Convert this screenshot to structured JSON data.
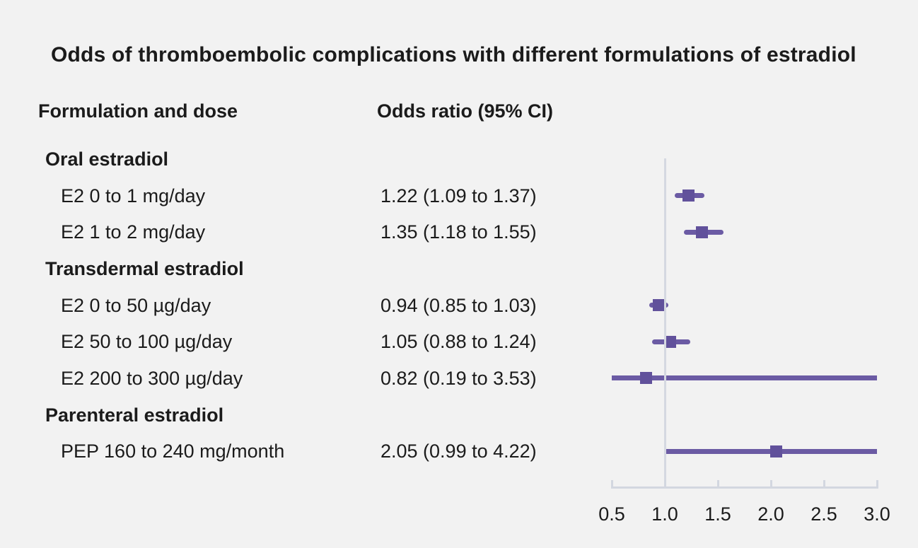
{
  "title": "Odds of thromboembolic complications with different formulations of estradiol",
  "header": {
    "formulation_col": "Formulation and dose",
    "odds_ratio_col": "Odds ratio (95% CI)"
  },
  "colors": {
    "background": "#f2f2f2",
    "text": "#1b1b1b",
    "marker": "#61519b",
    "ci_line": "#6b5ba4",
    "axis_line": "#d3d7e0",
    "reference_line": "#d5d8e1"
  },
  "chart_data": {
    "type": "scatter",
    "variant": "forest-plot",
    "title": "Odds of thromboembolic complications with different formulations of estradiol",
    "xlabel": "",
    "ylabel": "",
    "x_axis": {
      "range": [
        0.5,
        3.0
      ],
      "tick_values": [
        0.5,
        1.0,
        1.5,
        2.0,
        2.5,
        3.0
      ],
      "tick_labels": [
        "0.5",
        "1.0",
        "1.5",
        "2.0",
        "2.5",
        "3.0"
      ],
      "reference_line": 1.0
    },
    "legend": null,
    "grid": false,
    "groups": [
      {
        "group": "Oral estradiol",
        "items": [
          {
            "label": "E2 0 to 1 mg/day",
            "or": 1.22,
            "ci_low": 1.09,
            "ci_high": 1.37,
            "display": "1.22 (1.09 to 1.37)"
          },
          {
            "label": "E2 1 to 2 mg/day",
            "or": 1.35,
            "ci_low": 1.18,
            "ci_high": 1.55,
            "display": "1.35 (1.18 to 1.55)"
          }
        ]
      },
      {
        "group": "Transdermal estradiol",
        "items": [
          {
            "label": "E2 0 to 50 µg/day",
            "or": 0.94,
            "ci_low": 0.85,
            "ci_high": 1.03,
            "display": "0.94 (0.85 to 1.03)"
          },
          {
            "label": "E2 50 to 100 µg/day",
            "or": 1.05,
            "ci_low": 0.88,
            "ci_high": 1.24,
            "display": "1.05 (0.88 to 1.24)"
          },
          {
            "label": "E2 200 to 300 µg/day",
            "or": 0.82,
            "ci_low": 0.19,
            "ci_high": 3.53,
            "display": "0.82 (0.19 to 3.53)"
          }
        ]
      },
      {
        "group": "Parenteral estradiol",
        "items": [
          {
            "label": "PEP 160 to 240 mg/month",
            "or": 2.05,
            "ci_low": 0.99,
            "ci_high": 4.22,
            "display": "2.05 (0.99 to 4.22)"
          }
        ]
      }
    ]
  }
}
